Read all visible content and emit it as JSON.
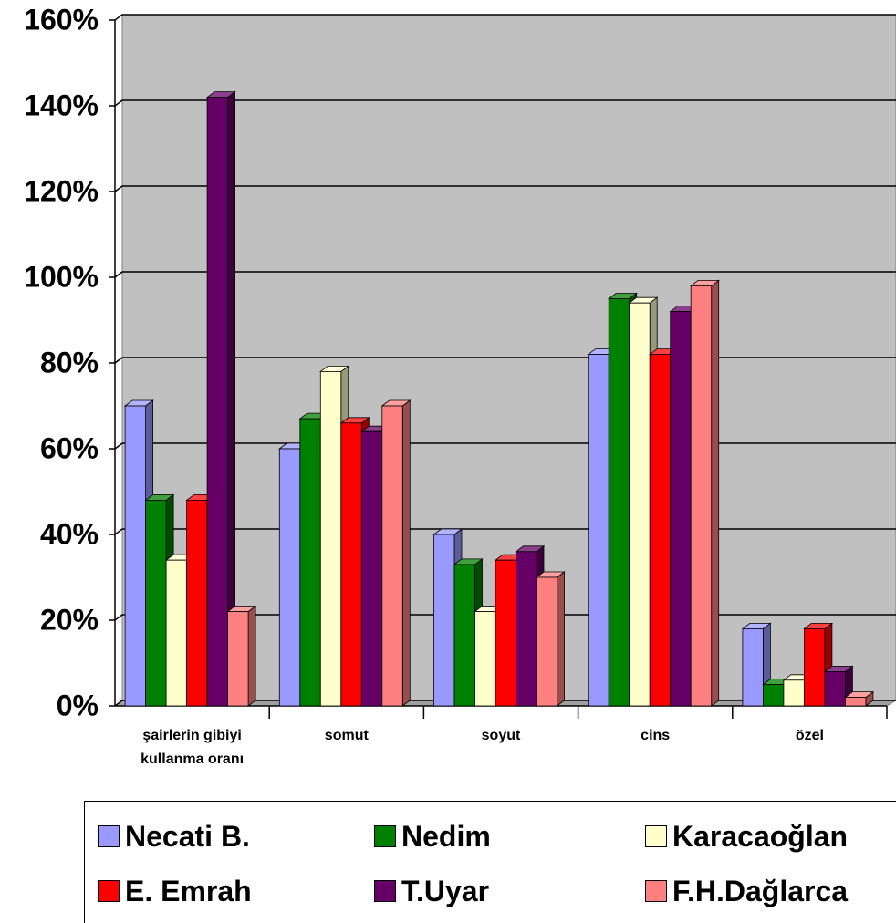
{
  "chart_data": {
    "type": "bar3d",
    "categories": [
      "şairlerin gibiyi kullanma oranı",
      "somut",
      "soyut",
      "cins",
      "özel"
    ],
    "series": [
      {
        "name": "Necati B.",
        "color": "#9999ff",
        "values": [
          70,
          60,
          40,
          82,
          18
        ]
      },
      {
        "name": "Nedim",
        "color": "#008000",
        "values": [
          48,
          67,
          33,
          95,
          5
        ]
      },
      {
        "name": "Karacaoğlan",
        "color": "#ffffcc",
        "values": [
          34,
          78,
          22,
          94,
          6
        ]
      },
      {
        "name": "E. Emrah",
        "color": "#ff0000",
        "values": [
          48,
          66,
          34,
          82,
          18
        ]
      },
      {
        "name": "T.Uyar",
        "color": "#660066",
        "values": [
          142,
          64,
          36,
          92,
          8
        ]
      },
      {
        "name": "F.H.Dağlarca",
        "color": "#ff8080",
        "values": [
          22,
          70,
          30,
          98,
          2
        ]
      }
    ],
    "ylim": [
      0,
      160
    ],
    "yticks": [
      {
        "value": 0,
        "label": "0%"
      },
      {
        "value": 20,
        "label": "20%"
      },
      {
        "value": 40,
        "label": "40%"
      },
      {
        "value": 60,
        "label": "60%"
      },
      {
        "value": 80,
        "label": "80%"
      },
      {
        "value": 100,
        "label": "100%"
      },
      {
        "value": 120,
        "label": "120%"
      },
      {
        "value": 140,
        "label": "140%"
      },
      {
        "value": 160,
        "label": "160%"
      }
    ],
    "grid": true,
    "wall_color": "#c0c0c0"
  }
}
